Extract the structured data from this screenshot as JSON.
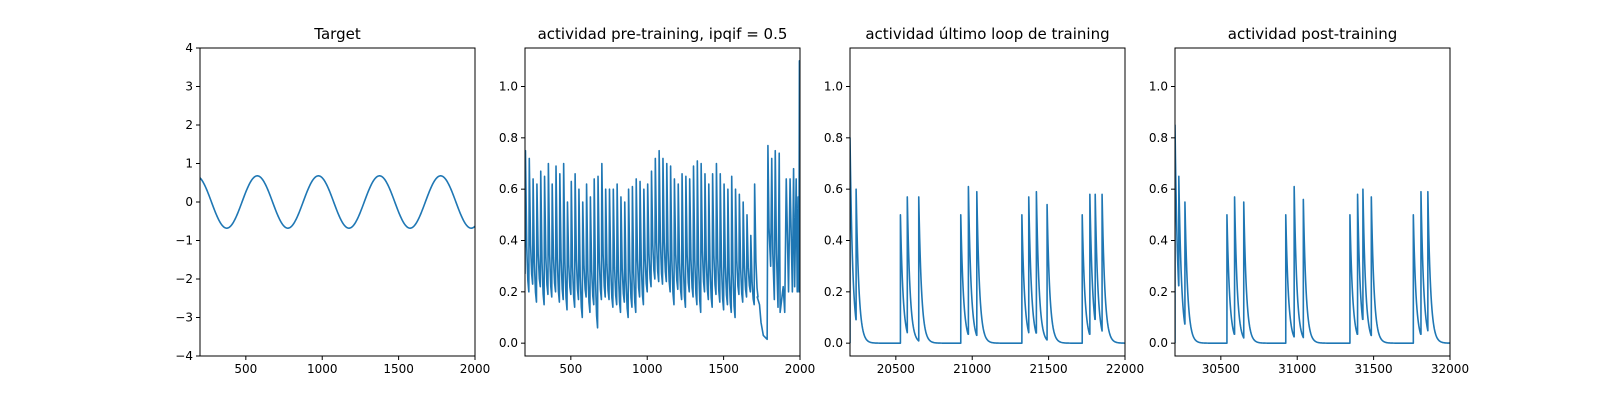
{
  "chart_data": [
    {
      "type": "line",
      "title": "Target",
      "xlabel": "",
      "ylabel": "",
      "xlim": [
        200,
        2000
      ],
      "ylim": [
        -4,
        4
      ],
      "x_ticks": [
        500,
        1000,
        1500,
        2000
      ],
      "y_ticks": [
        -4,
        -3,
        -2,
        -1,
        0,
        1,
        2,
        3,
        4
      ],
      "grid": false,
      "line_color": "#1f77b4",
      "series": [
        {
          "kind": "sine",
          "amplitude": 0.68,
          "period": 400,
          "x_at_peak": 575,
          "x": [
            200,
            300,
            375,
            475,
            575,
            675,
            775,
            875,
            975,
            1075,
            1175,
            1275,
            1375,
            1475,
            1575,
            1675,
            1775,
            1875,
            1975,
            2000
          ],
          "y": [
            0.62,
            -0.39,
            -0.68,
            0.0,
            0.68,
            0.0,
            -0.68,
            0.0,
            0.68,
            0.0,
            -0.68,
            0.0,
            0.68,
            0.0,
            -0.68,
            0.0,
            0.68,
            0.0,
            -0.68,
            -0.62
          ]
        }
      ]
    },
    {
      "type": "line",
      "title": "actividad pre-training, ipqif = 0.5",
      "xlabel": "",
      "ylabel": "",
      "xlim": [
        200,
        2000
      ],
      "ylim": [
        -0.05,
        1.15
      ],
      "x_ticks": [
        500,
        1000,
        1500,
        2000
      ],
      "y_ticks": [
        0.0,
        0.2,
        0.4,
        0.6,
        0.8,
        1.0
      ],
      "grid": false,
      "line_color": "#1f77b4",
      "series": [
        {
          "kind": "oscillation",
          "start_x": 200,
          "end_x": 1720,
          "cycle": 25,
          "peaks": [
            0.75,
            0.72,
            0.64,
            0.62,
            0.67,
            0.65,
            0.7,
            0.62,
            0.69,
            0.66,
            0.7,
            0.55,
            0.63,
            0.66,
            0.6,
            0.55,
            0.62,
            0.57,
            0.64,
            0.65,
            0.7,
            0.6,
            0.6,
            0.6,
            0.62,
            0.57,
            0.55,
            0.6,
            0.61,
            0.64,
            0.63,
            0.6,
            0.62,
            0.67,
            0.72,
            0.75,
            0.72,
            0.7,
            0.69,
            0.64,
            0.62,
            0.66,
            0.65,
            0.64,
            0.69,
            0.71,
            0.7,
            0.66,
            0.62,
            0.66,
            0.7,
            0.66,
            0.62,
            0.6,
            0.65,
            0.6,
            0.58,
            0.55,
            0.5,
            0.42,
            0.62,
            0.59
          ],
          "troughs": [
            0.27,
            0.2,
            0.23,
            0.16,
            0.22,
            0.15,
            0.19,
            0.18,
            0.2,
            0.16,
            0.17,
            0.13,
            0.19,
            0.14,
            0.17,
            0.1,
            0.18,
            0.12,
            0.15,
            0.06,
            0.17,
            0.18,
            0.17,
            0.14,
            0.15,
            0.12,
            0.16,
            0.1,
            0.14,
            0.12,
            0.18,
            0.15,
            0.2,
            0.22,
            0.25,
            0.24,
            0.23,
            0.24,
            0.2,
            0.15,
            0.21,
            0.17,
            0.14,
            0.2,
            0.18,
            0.15,
            0.12,
            0.2,
            0.17,
            0.14,
            0.19,
            0.16,
            0.13,
            0.15,
            0.12,
            0.1,
            0.19,
            0.16,
            0.18,
            0.2,
            0.15,
            0.18
          ],
          "tail_x": [
            1720,
            1735,
            1745,
            1760,
            1785,
            1790,
            1797,
            1808,
            1815,
            1822,
            1832,
            1838,
            1846,
            1856,
            1864,
            1870,
            1890,
            1900,
            1910,
            1925,
            1935,
            1950,
            1958,
            1965,
            1975,
            1982,
            1988,
            1993,
            1996,
            2000
          ],
          "tail_y": [
            0.18,
            0.15,
            0.08,
            0.03,
            0.015,
            0.77,
            0.45,
            0.3,
            0.72,
            0.35,
            0.17,
            0.75,
            0.35,
            0.14,
            0.74,
            0.12,
            0.22,
            0.12,
            0.64,
            0.2,
            0.64,
            0.2,
            0.68,
            0.22,
            0.64,
            0.2,
            0.57,
            0.2,
            1.1,
            0.2
          ]
        }
      ]
    },
    {
      "type": "line",
      "title": "actividad último loop de training",
      "xlabel": "",
      "ylabel": "",
      "xlim": [
        20200,
        22000
      ],
      "ylim": [
        -0.05,
        1.15
      ],
      "x_ticks": [
        20500,
        21000,
        21500,
        22000
      ],
      "y_ticks": [
        0.0,
        0.2,
        0.4,
        0.6,
        0.8,
        1.0
      ],
      "grid": false,
      "line_color": "#1f77b4",
      "series": [
        {
          "kind": "bursts",
          "baseline": 0.0,
          "spike_times": [
            20200,
            20240,
            20530,
            20575,
            20650,
            20925,
            20975,
            21030,
            21325,
            21370,
            21420,
            21490,
            21720,
            21770,
            21805,
            21850
          ],
          "spike_peaks": [
            0.8,
            0.6,
            0.5,
            0.57,
            0.57,
            0.5,
            0.61,
            0.59,
            0.5,
            0.57,
            0.59,
            0.54,
            0.5,
            0.58,
            0.58,
            0.58
          ]
        }
      ]
    },
    {
      "type": "line",
      "title": "actividad post-training",
      "xlabel": "",
      "ylabel": "",
      "xlim": [
        30200,
        32000
      ],
      "ylim": [
        -0.05,
        1.15
      ],
      "x_ticks": [
        30500,
        31000,
        31500,
        32000
      ],
      "y_ticks": [
        0.0,
        0.2,
        0.4,
        0.6,
        0.8,
        1.0
      ],
      "grid": false,
      "line_color": "#1f77b4",
      "series": [
        {
          "kind": "bursts",
          "baseline": 0.0,
          "spike_times": [
            30200,
            30225,
            30265,
            30540,
            30590,
            30650,
            30925,
            30980,
            31040,
            31345,
            31395,
            31430,
            31485,
            31760,
            31810,
            31855
          ],
          "spike_peaks": [
            0.85,
            0.65,
            0.55,
            0.5,
            0.57,
            0.55,
            0.5,
            0.61,
            0.56,
            0.5,
            0.58,
            0.6,
            0.57,
            0.5,
            0.59,
            0.59
          ]
        }
      ]
    }
  ]
}
